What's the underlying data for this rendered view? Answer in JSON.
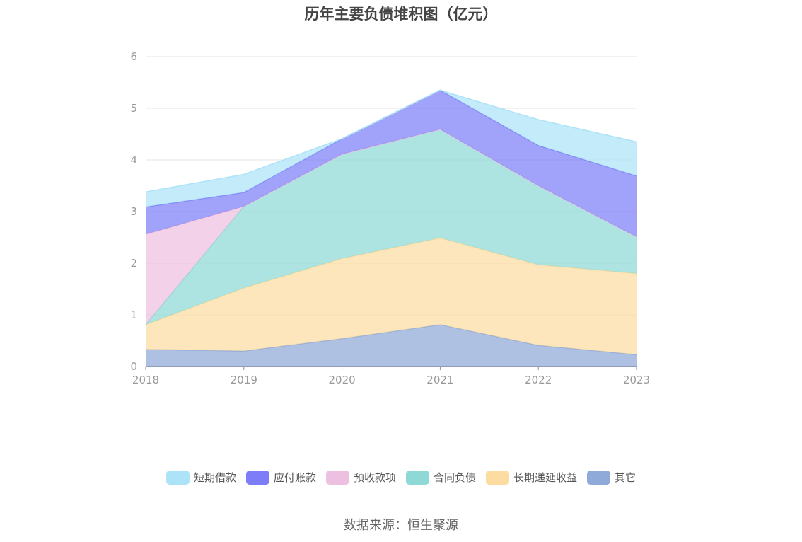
{
  "title": "历年主要负债堆积图（亿元）",
  "source": "数据来源：恒生聚源",
  "chart_data": {
    "type": "area",
    "stacked": true,
    "title": "历年主要负债堆积图（亿元）",
    "x": [
      "2018",
      "2019",
      "2020",
      "2021",
      "2022",
      "2023"
    ],
    "ylim": [
      0,
      6
    ],
    "yticks": [
      0,
      1,
      2,
      3,
      4,
      5,
      6
    ],
    "grid": true,
    "legend_position": "bottom",
    "series": [
      {
        "name": "其它",
        "color": "#8fa9d8",
        "values": [
          0.33,
          0.3,
          0.54,
          0.81,
          0.41,
          0.23
        ]
      },
      {
        "name": "长期递延收益",
        "color": "#fcdca1",
        "values": [
          0.48,
          1.22,
          1.55,
          1.68,
          1.56,
          1.57
        ]
      },
      {
        "name": "合同负债",
        "color": "#8ed9d6",
        "values": [
          0.0,
          1.58,
          2.02,
          2.1,
          1.53,
          0.71
        ]
      },
      {
        "name": "预收款项",
        "color": "#edbfe0",
        "values": [
          1.75,
          0.0,
          0.0,
          0.0,
          0.0,
          0.0
        ]
      },
      {
        "name": "应付账款",
        "color": "#7d7ef7",
        "values": [
          0.53,
          0.27,
          0.3,
          0.76,
          0.78,
          1.18
        ]
      },
      {
        "name": "短期借款",
        "color": "#ade3f8",
        "values": [
          0.29,
          0.35,
          0.0,
          0.0,
          0.5,
          0.66
        ]
      }
    ],
    "legend_order": [
      "短期借款",
      "应付账款",
      "预收款项",
      "合同负债",
      "长期递延收益",
      "其它"
    ]
  }
}
